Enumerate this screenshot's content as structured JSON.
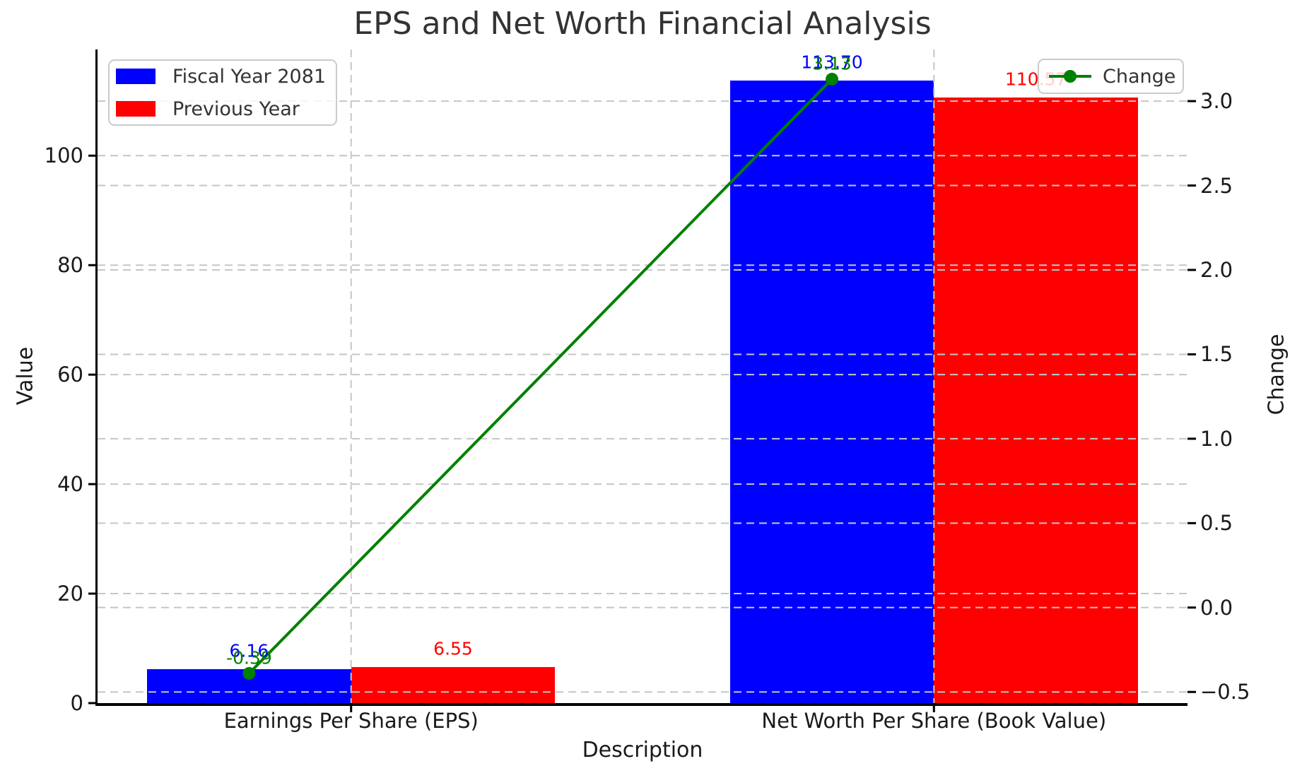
{
  "chart_data": {
    "type": "bar",
    "subtype": "grouped-bars-with-line-dual-axis",
    "title": "EPS and Net Worth Financial Analysis",
    "xlabel": "Description",
    "ylabel_left": "Value",
    "ylabel_right": "Change",
    "categories": [
      "Earnings Per Share (EPS)",
      "Net Worth Per Share (Book Value)"
    ],
    "series": [
      {
        "name": "Fiscal Year 2081",
        "color": "#0000ff",
        "values": [
          6.16,
          113.7
        ],
        "value_labels": [
          "6.16",
          "113.70"
        ]
      },
      {
        "name": "Previous Year",
        "color": "#ff0000",
        "values": [
          6.55,
          110.57
        ],
        "value_labels": [
          "6.55",
          "110.57"
        ]
      }
    ],
    "line": {
      "name": "Change",
      "color": "#008000",
      "values": [
        -0.39,
        3.13
      ],
      "value_labels": [
        "-0.39",
        "3.13"
      ]
    },
    "left_axis": {
      "ticks": [
        0,
        20,
        40,
        60,
        80,
        100
      ],
      "tick_labels": [
        "0",
        "20",
        "40",
        "60",
        "80",
        "100"
      ],
      "lim": [
        0,
        119.4
      ]
    },
    "right_axis": {
      "ticks": [
        -0.5,
        0,
        0.5,
        1,
        1.5,
        2,
        2.5,
        3
      ],
      "tick_labels": [
        "−0.5",
        "0.0",
        "0.5",
        "1.0",
        "1.5",
        "2.0",
        "2.5",
        "3.0"
      ],
      "lim": [
        -0.566,
        3.306
      ]
    },
    "xlim": [
      -0.435,
      1.435
    ],
    "bar_width": 0.35,
    "grid": {
      "show": true,
      "color": "#c6c6c6",
      "style": "dashed"
    },
    "colors": {
      "spine": "#000000",
      "text": "#1a1a1a",
      "title": "#333333",
      "legend_border": "#cbcbcb"
    },
    "legend_bars_position": "upper left",
    "legend_line_position": "upper right"
  }
}
